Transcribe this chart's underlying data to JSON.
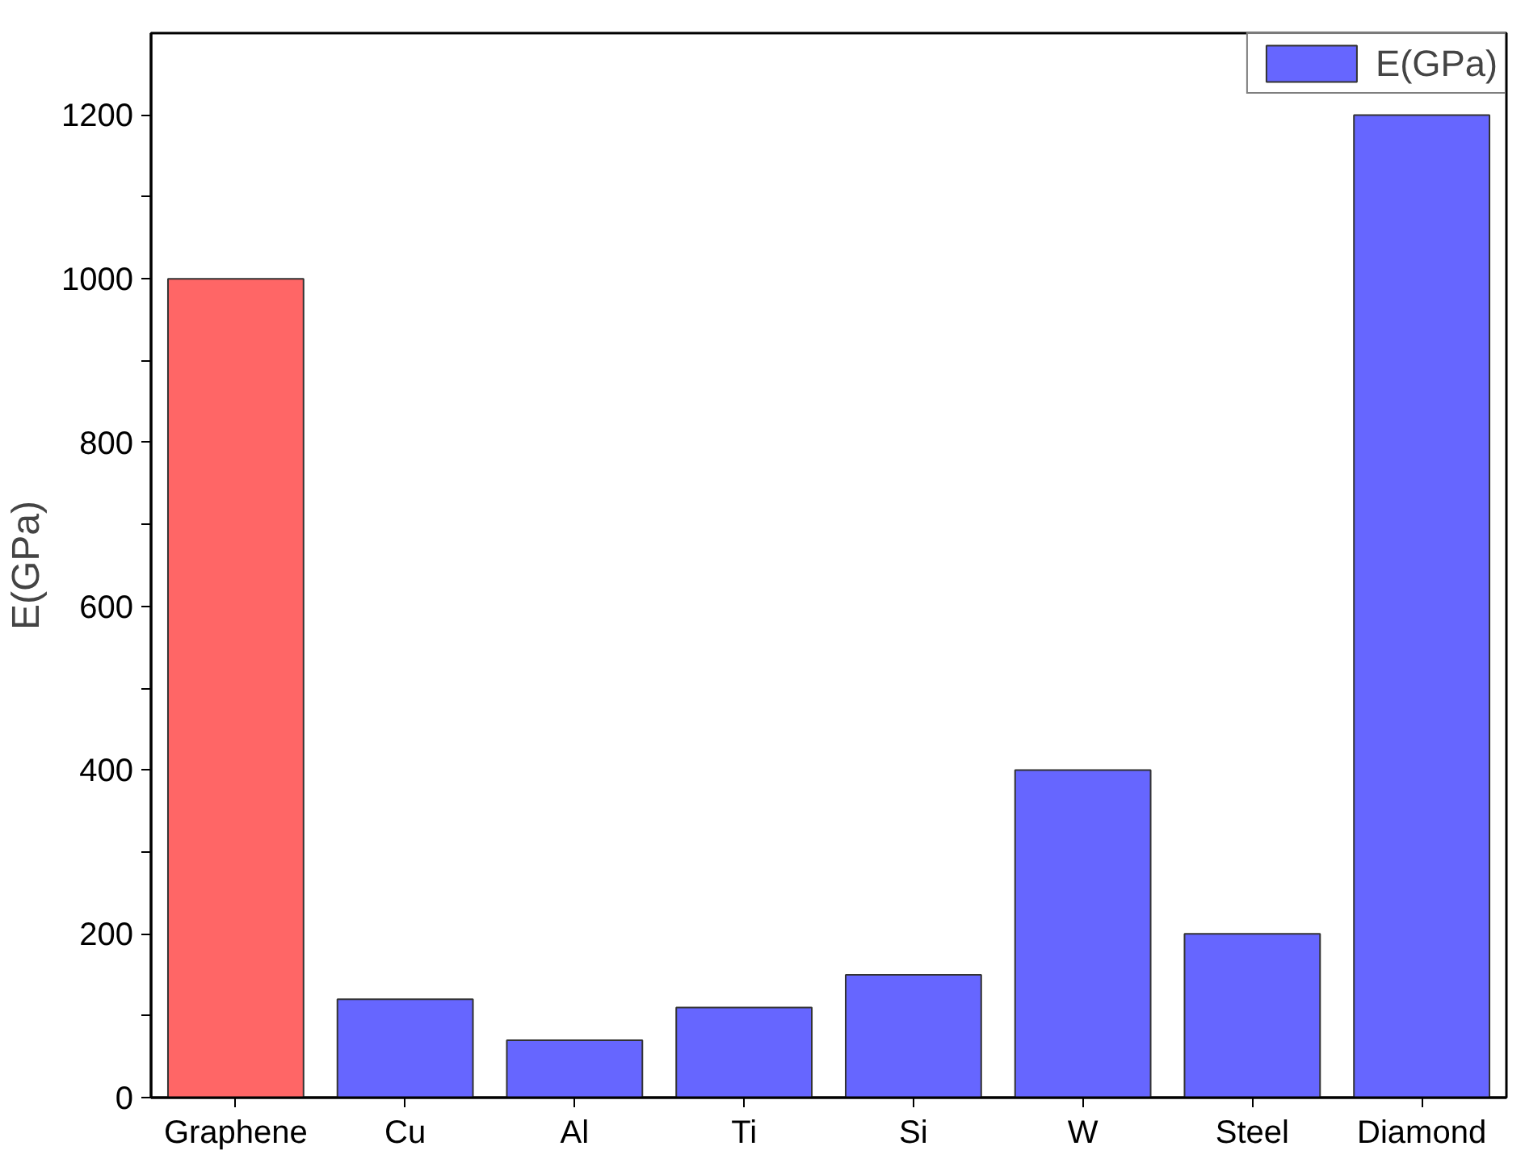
{
  "chart_data": {
    "type": "bar",
    "ylabel": "E(GPa)",
    "categories": [
      "Graphene",
      "Cu",
      "Al",
      "Ti",
      "Si",
      "W",
      "Steel",
      "Diamond"
    ],
    "series": [
      {
        "name": "E(GPa)",
        "color": "#6666ff",
        "values": [
          1000,
          120,
          70,
          110,
          150,
          400,
          200,
          1200
        ],
        "colors": [
          "#ff6666",
          "#6666ff",
          "#6666ff",
          "#6666ff",
          "#6666ff",
          "#6666ff",
          "#6666ff",
          "#6666ff"
        ]
      }
    ],
    "ylim": [
      0,
      1300
    ],
    "yticks": [
      0,
      {
        "value": 100,
        "label": null
      },
      200,
      {
        "value": 300,
        "label": null
      },
      400,
      {
        "value": 500,
        "label": null
      },
      600,
      {
        "value": 700,
        "label": null
      },
      800,
      {
        "value": 900,
        "label": null
      },
      1000,
      {
        "value": 1100,
        "label": null
      },
      1200
    ],
    "grid": false,
    "legend": "top right"
  }
}
